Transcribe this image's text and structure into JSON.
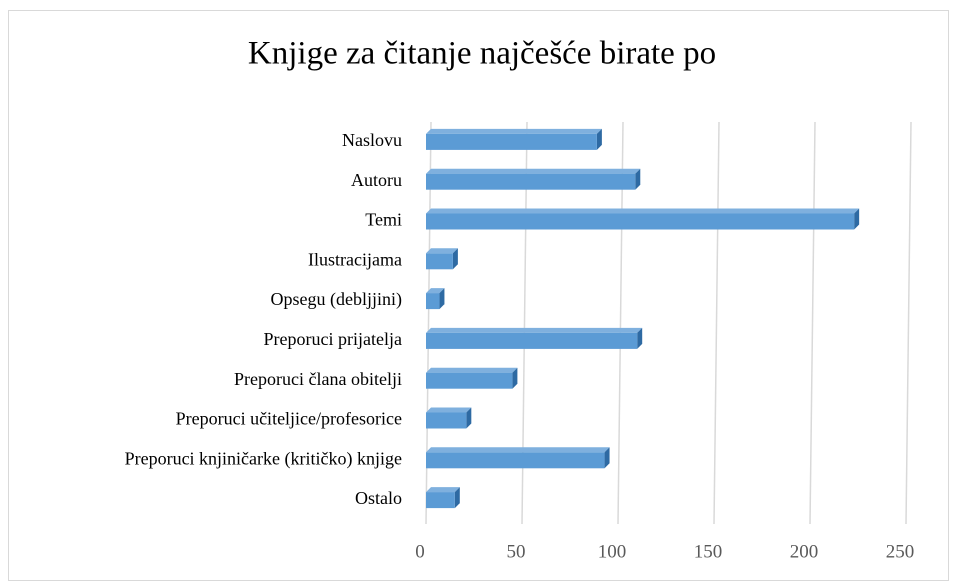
{
  "chart_data": {
    "type": "bar",
    "orientation": "horizontal",
    "title": "Knjige za čitanje najčešće birate po",
    "categories": [
      "Naslovu",
      "Autoru",
      "Temi",
      "Ilustracijama",
      "Opsegu (debljjini)",
      "Preporuci prijatelja",
      "Preporuci člana obitelji",
      "Preporuci učiteljice/profesorice",
      "Preporuci knjiničarke (kritičko) knjige",
      "Ostalo"
    ],
    "values": [
      89,
      109,
      223,
      14,
      7,
      110,
      45,
      21,
      93,
      15
    ],
    "color": "#5b9bd5",
    "xlim": [
      0,
      250
    ],
    "xticks": [
      0,
      50,
      100,
      150,
      200,
      250
    ],
    "grid": true
  }
}
